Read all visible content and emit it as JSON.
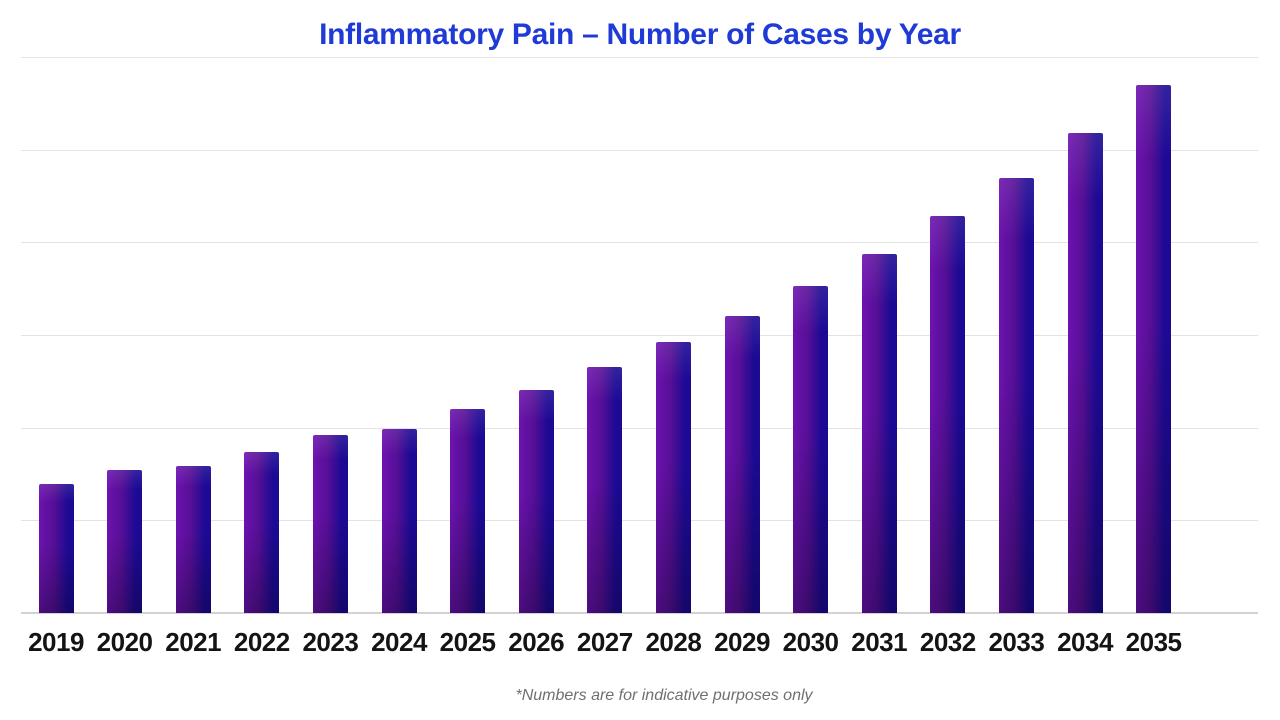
{
  "chart_data": {
    "type": "bar",
    "title": "Inflammatory Pain – Number of Cases by Year",
    "categories": [
      "2019",
      "2020",
      "2021",
      "2022",
      "2023",
      "2024",
      "2025",
      "2026",
      "2027",
      "2028",
      "2029",
      "2030",
      "2031",
      "2032",
      "2033",
      "2034",
      "2035"
    ],
    "values": [
      13.9,
      15.4,
      15.9,
      17.4,
      19.2,
      19.9,
      22.0,
      24.1,
      26.6,
      29.2,
      32.1,
      35.3,
      38.8,
      42.8,
      47.0,
      51.8,
      57.0
    ],
    "xlabel": "",
    "ylabel": "",
    "ylim": [
      0,
      60
    ],
    "gridline_count": 7,
    "grid": "horizontal-only",
    "legend_position": "none",
    "y_axis_tick_labels_visible": false
  },
  "footnote": "*Numbers are for indicative purposes only",
  "colors": {
    "title": "#1f3ad6",
    "bar_gradient_left": "#6d12b0",
    "bar_gradient_mid": "#560f96",
    "bar_gradient_right": "#1c0a94",
    "bar_shade_bottom": "rgba(0,0,10,0.30)",
    "bar_highlight_top": "rgba(255,255,255,0.10)",
    "gridline": "#e3e3e3",
    "axis_line": "#d2d2d2",
    "x_label_text": "#141414",
    "footnote_text": "#6f6f6f",
    "background": "#ffffff"
  }
}
